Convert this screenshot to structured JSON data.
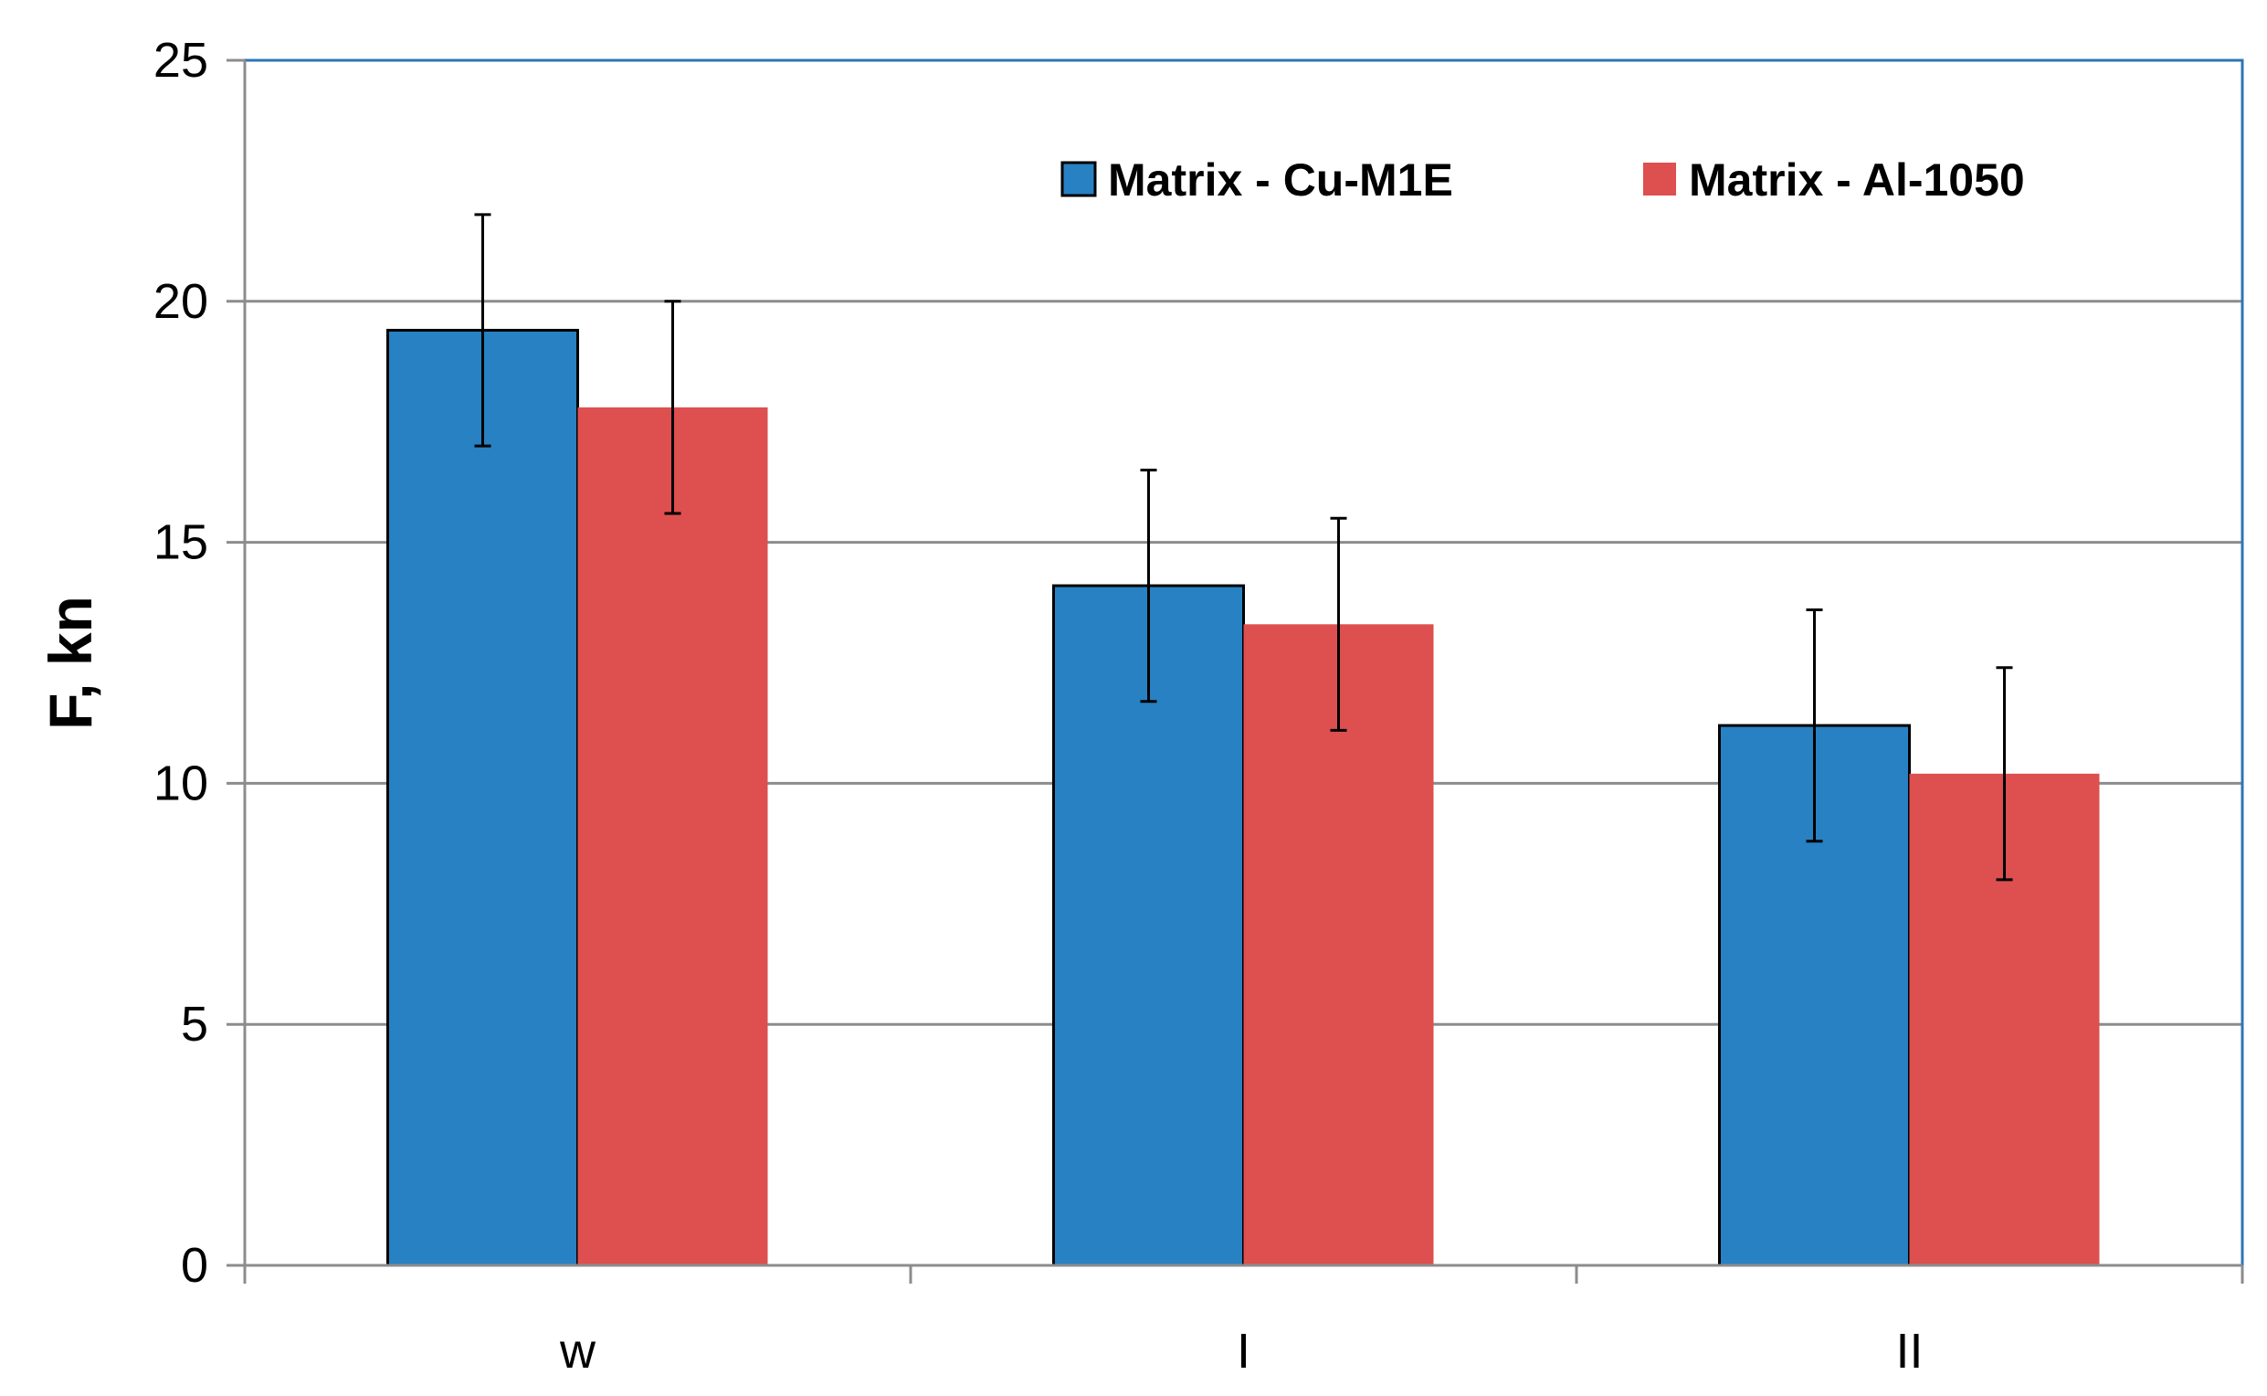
{
  "chart_data": {
    "type": "bar",
    "title": "",
    "xlabel": "",
    "ylabel": "F, kn",
    "ylim": [
      0,
      25
    ],
    "yticks": [
      0,
      5,
      10,
      15,
      20,
      25
    ],
    "categories": [
      "w",
      "I",
      "II"
    ],
    "grid": true,
    "legend_position": "top-right",
    "series": [
      {
        "name": "Matrix - Cu-M1E",
        "color": "#2781C2",
        "values": [
          19.4,
          14.1,
          11.2
        ],
        "error": [
          2.4,
          2.4,
          2.4
        ]
      },
      {
        "name": "Matrix - Al-1050",
        "color": "#DE4F4F",
        "values": [
          17.8,
          13.3,
          10.2
        ],
        "error": [
          2.2,
          2.2,
          2.2
        ]
      }
    ]
  }
}
